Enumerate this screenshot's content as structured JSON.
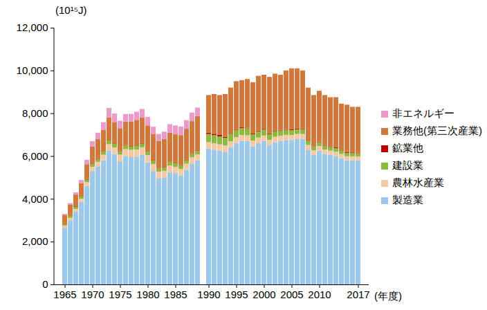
{
  "chart_data": {
    "type": "bar",
    "stacked": true,
    "grid": false,
    "legend": "right",
    "y_label": "(10¹⁵J)",
    "x_label": "(年度)",
    "ylim": [
      0,
      12000
    ],
    "yticks": [
      0,
      {
        "value": 2000,
        "label": "2,000"
      },
      {
        "value": 4000,
        "label": "4,000"
      },
      {
        "value": 6000,
        "label": "6,000"
      },
      {
        "value": 8000,
        "label": "8,000"
      },
      {
        "value": 10000,
        "label": "10,000"
      },
      {
        "value": 12000,
        "label": "12,000"
      }
    ],
    "categories": [
      "1965",
      null,
      null,
      null,
      null,
      "1970",
      null,
      null,
      null,
      null,
      "1975",
      null,
      null,
      null,
      null,
      "1980",
      null,
      null,
      null,
      null,
      "1985",
      null,
      null,
      null,
      null,
      null,
      "1990",
      null,
      null,
      null,
      null,
      "1995",
      null,
      null,
      null,
      null,
      "2000",
      null,
      null,
      null,
      null,
      "2005",
      null,
      null,
      null,
      null,
      "2010",
      null,
      null,
      null,
      null,
      null,
      null,
      "2017"
    ],
    "series": [
      {
        "name": "製造業",
        "color": "#9CC8EC",
        "values": [
          2650,
          3000,
          3400,
          3850,
          4600,
          5300,
          5500,
          5800,
          6250,
          6100,
          5750,
          6000,
          5950,
          5950,
          6050,
          5700,
          5300,
          4950,
          5000,
          5250,
          5200,
          5100,
          5350,
          5650,
          5800,
          null,
          6350,
          6300,
          6250,
          6200,
          6400,
          6600,
          6700,
          6700,
          6450,
          6600,
          6700,
          6500,
          6650,
          6700,
          6750,
          6750,
          6800,
          6800,
          6300,
          6050,
          6250,
          6100,
          6050,
          6000,
          5900,
          5800,
          5800,
          5800
        ]
      },
      {
        "name": "農林水産業",
        "color": "#F6C9A4",
        "values": [
          100,
          110,
          130,
          150,
          180,
          200,
          230,
          260,
          300,
          300,
          320,
          330,
          340,
          350,
          360,
          340,
          330,
          320,
          310,
          310,
          300,
          300,
          290,
          290,
          280,
          null,
          300,
          300,
          295,
          290,
          290,
          285,
          280,
          275,
          270,
          265,
          260,
          255,
          250,
          245,
          240,
          235,
          230,
          225,
          220,
          215,
          210,
          205,
          200,
          200,
          195,
          190,
          185,
          180
        ]
      },
      {
        "name": "建設業",
        "color": "#8DBA3A",
        "values": [
          80,
          90,
          100,
          110,
          120,
          130,
          140,
          150,
          180,
          170,
          160,
          160,
          160,
          170,
          170,
          170,
          170,
          160,
          160,
          160,
          160,
          160,
          165,
          170,
          170,
          null,
          380,
          380,
          370,
          360,
          350,
          340,
          330,
          320,
          300,
          290,
          280,
          270,
          260,
          250,
          240,
          230,
          220,
          210,
          200,
          190,
          185,
          180,
          175,
          170,
          165,
          160,
          155,
          150
        ]
      },
      {
        "name": "鉱業他",
        "color": "#C00000",
        "values": [
          20,
          20,
          20,
          20,
          20,
          20,
          20,
          20,
          20,
          20,
          20,
          20,
          20,
          20,
          20,
          20,
          20,
          20,
          20,
          20,
          20,
          20,
          20,
          20,
          20,
          null,
          60,
          60,
          70,
          50,
          30,
          30,
          30,
          30,
          30,
          30,
          30,
          30,
          30,
          30,
          30,
          30,
          30,
          30,
          30,
          30,
          30,
          30,
          30,
          30,
          30,
          30,
          30,
          30
        ]
      },
      {
        "name": "業務他(第三次産業)",
        "color": "#D2783A",
        "values": [
          400,
          500,
          550,
          600,
          700,
          800,
          900,
          1000,
          1050,
          1000,
          1050,
          1100,
          1150,
          1200,
          1200,
          1200,
          1200,
          1250,
          1300,
          1350,
          1350,
          1400,
          1450,
          1500,
          1600,
          null,
          1760,
          1860,
          1865,
          2000,
          2130,
          2245,
          2210,
          2275,
          2400,
          2565,
          2530,
          2645,
          2660,
          2575,
          2740,
          2855,
          2820,
          2735,
          2450,
          2365,
          2375,
          2335,
          2295,
          2350,
          2160,
          2220,
          2130,
          2140
        ]
      },
      {
        "name": "非エネルギー",
        "color": "#EC9ACB",
        "values": [
          50,
          80,
          100,
          150,
          200,
          250,
          300,
          350,
          450,
          400,
          350,
          350,
          350,
          380,
          400,
          400,
          350,
          330,
          350,
          400,
          400,
          400,
          400,
          400,
          400,
          null,
          null,
          null,
          null,
          null,
          null,
          null,
          null,
          null,
          null,
          null,
          null,
          null,
          null,
          null,
          null,
          null,
          null,
          null,
          null,
          null,
          null,
          null,
          null,
          null,
          null,
          null,
          null,
          null
        ]
      }
    ]
  }
}
